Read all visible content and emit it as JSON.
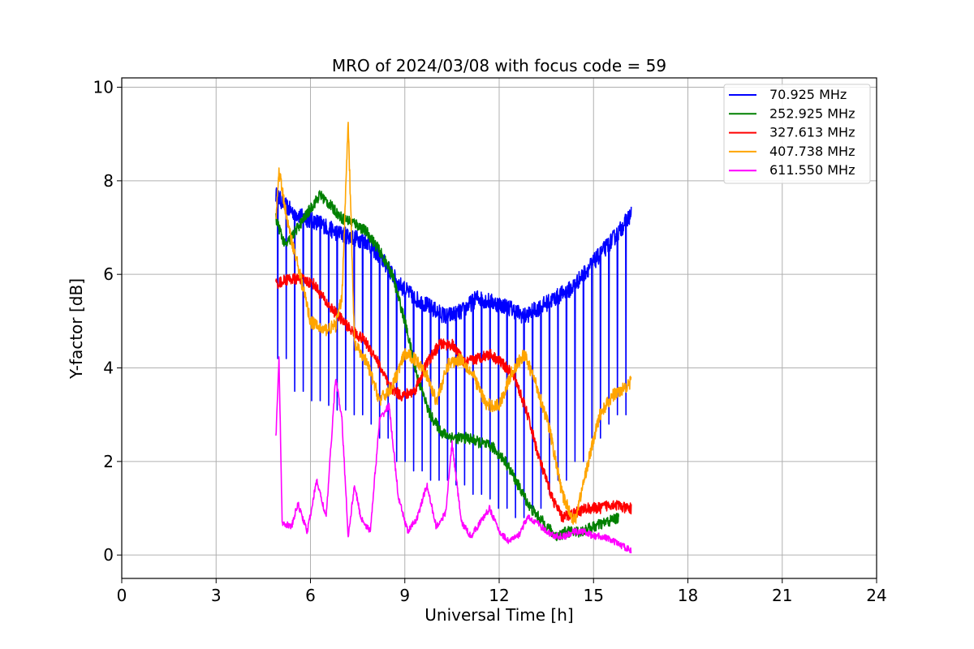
{
  "chart_data": {
    "type": "line",
    "title": "MRO of 2024/03/08 with focus code = 59",
    "xlabel": "Universal Time [h]",
    "ylabel": "Y-factor [dB]",
    "xlim": [
      0,
      24
    ],
    "ylim": [
      -0.5,
      10.2
    ],
    "xticks": [
      0,
      3,
      6,
      9,
      12,
      15,
      18,
      21,
      24
    ],
    "yticks": [
      0,
      2,
      4,
      6,
      8,
      10
    ],
    "grid": true,
    "legend_position": "top-right",
    "series": [
      {
        "name": " 70.925 MHz",
        "color": "#0000ff",
        "x": [
          4.9,
          5.3,
          5.8,
          6.3,
          6.8,
          7.3,
          7.8,
          8.3,
          8.8,
          9.3,
          9.8,
          10.3,
          10.8,
          11.3,
          11.8,
          12.3,
          12.8,
          13.3,
          13.8,
          14.3,
          14.8,
          15.3,
          15.8,
          16.2
        ],
        "y": [
          7.7,
          7.4,
          7.2,
          7.1,
          6.9,
          6.8,
          6.7,
          6.3,
          5.8,
          5.5,
          5.3,
          5.1,
          5.2,
          5.5,
          5.4,
          5.3,
          5.1,
          5.3,
          5.5,
          5.7,
          6.1,
          6.5,
          6.9,
          7.3
        ],
        "dips_to": [
          4.2,
          3.5,
          3.3,
          3.2,
          3.1,
          3.0,
          2.8,
          2.5,
          2.0,
          1.8,
          1.6,
          1.6,
          1.5,
          1.3,
          1.2,
          1.0,
          0.8,
          1.0,
          1.3,
          1.6,
          2.0,
          2.5,
          2.8,
          3.0
        ]
      },
      {
        "name": " 252.925 MHz",
        "color": "#008000",
        "x": [
          4.9,
          5.2,
          5.6,
          6.0,
          6.3,
          6.6,
          7.0,
          7.4,
          7.8,
          8.2,
          8.6,
          9.0,
          9.4,
          9.8,
          10.2,
          10.6,
          11.0,
          11.4,
          11.8,
          12.2,
          12.6,
          13.0,
          13.4,
          13.8,
          14.2,
          14.6,
          15.0,
          15.4,
          15.8
        ],
        "y": [
          7.2,
          6.6,
          7.0,
          7.4,
          7.7,
          7.5,
          7.2,
          7.1,
          6.9,
          6.5,
          6.0,
          5.0,
          3.8,
          3.0,
          2.6,
          2.5,
          2.5,
          2.4,
          2.3,
          2.0,
          1.5,
          1.0,
          0.7,
          0.4,
          0.5,
          0.5,
          0.6,
          0.7,
          0.8
        ]
      },
      {
        "name": " 327.613 MHz",
        "color": "#ff0000",
        "x": [
          4.9,
          5.3,
          5.7,
          6.1,
          6.5,
          6.9,
          7.3,
          7.7,
          8.1,
          8.5,
          8.9,
          9.3,
          9.7,
          10.1,
          10.5,
          10.9,
          11.3,
          11.7,
          12.1,
          12.5,
          12.9,
          13.3,
          13.7,
          14.0,
          14.4,
          14.8,
          15.2,
          15.6,
          16.0,
          16.2
        ],
        "y": [
          5.8,
          5.9,
          5.9,
          5.8,
          5.4,
          5.1,
          4.8,
          4.6,
          4.2,
          3.6,
          3.4,
          3.5,
          4.1,
          4.5,
          4.5,
          4.1,
          4.2,
          4.3,
          4.1,
          3.8,
          3.0,
          2.0,
          1.2,
          0.8,
          0.9,
          1.0,
          1.0,
          1.1,
          1.0,
          1.0
        ]
      },
      {
        "name": " 407.738 MHz",
        "color": "#ffa500",
        "x": [
          4.9,
          5.0,
          5.3,
          5.6,
          6.0,
          6.4,
          6.8,
          7.0,
          7.2,
          7.4,
          7.8,
          8.2,
          8.6,
          9.0,
          9.3,
          9.6,
          10.0,
          10.4,
          10.8,
          11.2,
          11.6,
          12.0,
          12.4,
          12.8,
          13.2,
          13.6,
          14.0,
          14.4,
          14.8,
          15.2,
          15.6,
          16.2
        ],
        "y": [
          7.2,
          8.2,
          7.0,
          6.2,
          5.0,
          4.8,
          4.9,
          5.5,
          9.3,
          4.5,
          4.1,
          3.3,
          3.6,
          4.3,
          4.2,
          4.0,
          3.3,
          4.1,
          4.2,
          3.8,
          3.2,
          3.2,
          3.9,
          4.3,
          3.6,
          2.7,
          1.3,
          0.7,
          1.9,
          3.0,
          3.4,
          3.7
        ]
      },
      {
        "name": " 611.550 MHz",
        "color": "#ff00ff",
        "x": [
          4.9,
          5.0,
          5.1,
          5.4,
          5.6,
          5.9,
          6.2,
          6.5,
          6.8,
          7.0,
          7.2,
          7.4,
          7.6,
          7.9,
          8.2,
          8.5,
          8.8,
          9.1,
          9.4,
          9.7,
          10.0,
          10.3,
          10.5,
          10.8,
          11.1,
          11.4,
          11.7,
          12.0,
          12.3,
          12.6,
          12.9,
          13.2,
          13.5,
          13.8,
          14.1,
          14.4,
          14.7,
          15.0,
          15.3,
          15.6,
          15.9,
          16.2
        ],
        "y": [
          2.5,
          4.2,
          0.7,
          0.6,
          1.1,
          0.5,
          1.6,
          0.8,
          3.8,
          2.9,
          0.4,
          1.5,
          0.8,
          0.5,
          2.9,
          3.2,
          1.2,
          0.5,
          0.8,
          1.5,
          0.6,
          0.9,
          2.4,
          0.7,
          0.4,
          0.7,
          1.0,
          0.5,
          0.3,
          0.4,
          0.8,
          0.7,
          0.5,
          0.4,
          0.4,
          0.5,
          0.5,
          0.4,
          0.4,
          0.3,
          0.2,
          0.1
        ]
      }
    ]
  }
}
